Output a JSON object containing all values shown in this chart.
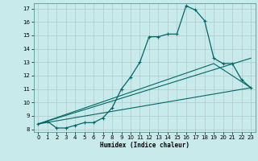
{
  "xlabel": "Humidex (Indice chaleur)",
  "bg_color": "#c8eaea",
  "grid_color": "#b0c8c8",
  "line_color": "#006868",
  "xlim": [
    -0.5,
    23.5
  ],
  "ylim": [
    7.8,
    17.4
  ],
  "xticks": [
    0,
    1,
    2,
    3,
    4,
    5,
    6,
    7,
    8,
    9,
    10,
    11,
    12,
    13,
    14,
    15,
    16,
    17,
    18,
    19,
    20,
    21,
    22,
    23
  ],
  "yticks": [
    8,
    9,
    10,
    11,
    12,
    13,
    14,
    15,
    16,
    17
  ],
  "curve1_x": [
    0,
    1,
    2,
    3,
    4,
    5,
    6,
    7,
    8,
    9,
    10,
    11,
    12,
    13,
    14,
    15,
    16,
    17,
    18,
    19,
    20,
    21,
    22,
    23
  ],
  "curve1_y": [
    8.4,
    8.6,
    8.1,
    8.1,
    8.3,
    8.5,
    8.5,
    8.85,
    9.6,
    11.0,
    11.9,
    13.0,
    14.9,
    14.9,
    15.1,
    15.1,
    17.2,
    16.9,
    16.1,
    13.3,
    12.9,
    12.9,
    11.7,
    11.1
  ],
  "line1_x": [
    0,
    23
  ],
  "line1_y": [
    8.4,
    11.1
  ],
  "line2_x": [
    0,
    23
  ],
  "line2_y": [
    8.4,
    13.3
  ],
  "line3_x": [
    0,
    19,
    23
  ],
  "line3_y": [
    8.4,
    12.9,
    11.1
  ]
}
